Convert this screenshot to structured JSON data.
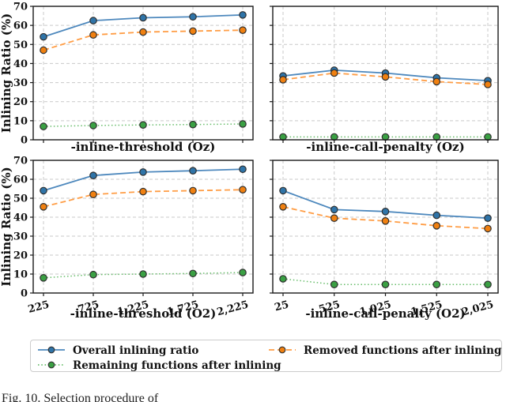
{
  "figure": {
    "ylabel": "Inlining Ratio (%)",
    "ylim": [
      0,
      70
    ],
    "yticks": [
      0,
      10,
      20,
      30,
      40,
      50,
      60,
      70
    ],
    "grid": true,
    "legend_position": "bottom",
    "legend": [
      {
        "label": "Overall inlining ratio",
        "style": "solid",
        "line_color": "#4d88bd",
        "marker_color": "#2f74a8"
      },
      {
        "label": "Removed functions after inlining",
        "style": "dashed",
        "line_color": "#ff9d45",
        "marker_color": "#f08010"
      },
      {
        "label": "Remaining functions after inlining",
        "style": "dotted",
        "line_color": "#67bd6a",
        "marker_color": "#3aa043"
      }
    ],
    "marker_edge_color": "#2f2f2f",
    "grid_color": "#c9c9c9",
    "spine_color": "#1a1a1a",
    "caption": "Fig. 10.    Selection procedure of"
  },
  "chart_data": [
    {
      "type": "line",
      "position": "top-left",
      "xlabel": "-inline-threshold (Oz)",
      "categories": [
        "225",
        "725",
        "1,225",
        "1,725",
        "2,225"
      ],
      "x_tick_labels_visible": false,
      "y_tick_labels_visible": true,
      "ylim": [
        0,
        70
      ],
      "series": [
        {
          "name": "Overall inlining ratio",
          "values": [
            54,
            62.5,
            64,
            64.5,
            65.5
          ]
        },
        {
          "name": "Removed functions after inlining",
          "values": [
            47,
            55,
            56.5,
            57,
            57.5
          ]
        },
        {
          "name": "Remaining functions after inlining",
          "values": [
            7,
            7.5,
            7.8,
            8,
            8.3
          ]
        }
      ]
    },
    {
      "type": "line",
      "position": "top-right",
      "xlabel": "-inline-call-penalty (Oz)",
      "categories": [
        "25",
        "525",
        "1,025",
        "1,525",
        "2,025"
      ],
      "x_tick_labels_visible": false,
      "y_tick_labels_visible": false,
      "ylim": [
        0,
        70
      ],
      "series": [
        {
          "name": "Overall inlining ratio",
          "values": [
            33.5,
            36.5,
            35,
            32.5,
            31
          ]
        },
        {
          "name": "Removed functions after inlining",
          "values": [
            31.5,
            35,
            33,
            30.5,
            29
          ]
        },
        {
          "name": "Remaining functions after inlining",
          "values": [
            1.5,
            1.5,
            1.5,
            1.5,
            1.5
          ]
        }
      ]
    },
    {
      "type": "line",
      "position": "bottom-left",
      "xlabel": "-inline-threshold (O2)",
      "categories": [
        "225",
        "725",
        "1,225",
        "1,725",
        "2,225"
      ],
      "x_tick_labels_visible": true,
      "y_tick_labels_visible": true,
      "ylim": [
        0,
        70
      ],
      "series": [
        {
          "name": "Overall inlining ratio",
          "values": [
            54,
            62,
            63.8,
            64.5,
            65.3
          ]
        },
        {
          "name": "Removed functions after inlining",
          "values": [
            45.5,
            52,
            53.5,
            54,
            54.5
          ]
        },
        {
          "name": "Remaining functions after inlining",
          "values": [
            8,
            9.7,
            10,
            10.3,
            10.8
          ]
        }
      ]
    },
    {
      "type": "line",
      "position": "bottom-right",
      "xlabel": "-inline-call-penalty (O2)",
      "categories": [
        "25",
        "525",
        "1,025",
        "1,525",
        "2,025"
      ],
      "x_tick_labels_visible": true,
      "y_tick_labels_visible": false,
      "ylim": [
        0,
        70
      ],
      "series": [
        {
          "name": "Overall inlining ratio",
          "values": [
            54,
            44,
            43,
            41,
            39.5
          ]
        },
        {
          "name": "Removed functions after inlining",
          "values": [
            45.5,
            39.5,
            38,
            35.5,
            34
          ]
        },
        {
          "name": "Remaining functions after inlining",
          "values": [
            7.5,
            4.5,
            4.5,
            4.5,
            4.5
          ]
        }
      ]
    }
  ]
}
